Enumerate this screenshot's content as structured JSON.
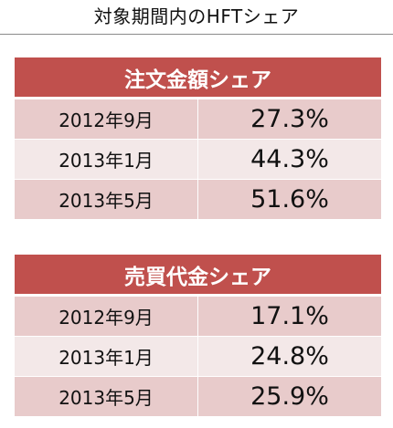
{
  "page": {
    "title": "対象期間内のHFTシェア"
  },
  "tables": [
    {
      "header": "注文金額シェア",
      "rows": [
        {
          "period": "2012年9月",
          "value": "27.3%"
        },
        {
          "period": "2013年1月",
          "value": "44.3%"
        },
        {
          "period": "2013年5月",
          "value": "51.6%"
        }
      ]
    },
    {
      "header": "売買代金シェア",
      "rows": [
        {
          "period": "2012年9月",
          "value": "17.1%"
        },
        {
          "period": "2013年1月",
          "value": "24.8%"
        },
        {
          "period": "2013年5月",
          "value": "25.9%"
        }
      ]
    }
  ],
  "colors": {
    "header_bg": "#c0504d",
    "row_dark": "#e8cbcb",
    "row_light": "#f3e8e8"
  }
}
